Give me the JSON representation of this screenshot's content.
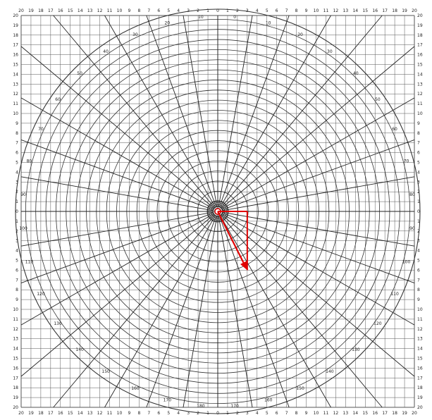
{
  "grid": {
    "top_labels": [
      "20",
      "19",
      "18",
      "17",
      "16",
      "15",
      "14",
      "13",
      "12",
      "11",
      "10",
      "9",
      "8",
      "7",
      "6",
      "5",
      "4",
      "3",
      "2",
      "1",
      "0",
      "1",
      "2",
      "3",
      "4",
      "5",
      "6",
      "7",
      "8",
      "9",
      "10",
      "11",
      "12",
      "13",
      "14",
      "15",
      "16",
      "17",
      "18",
      "19",
      "20"
    ],
    "bottom_labels": [
      "20",
      "19",
      "18",
      "17",
      "16",
      "15",
      "14",
      "13",
      "12",
      "11",
      "10",
      "9",
      "8",
      "7",
      "6",
      "5",
      "4",
      "3",
      "2",
      "1",
      "0",
      "1",
      "2",
      "3",
      "4",
      "5",
      "6",
      "7",
      "8",
      "9",
      "10",
      "11",
      "12",
      "13",
      "14",
      "15",
      "16",
      "17",
      "18",
      "19",
      "20"
    ],
    "side_labels": [
      "20",
      "19",
      "18",
      "17",
      "16",
      "15",
      "14",
      "13",
      "12",
      "11",
      "10",
      "9",
      "8",
      "7",
      "6",
      "5",
      "4",
      "3",
      "2",
      "1",
      "0",
      "1",
      "2",
      "3",
      "4",
      "5",
      "6",
      "7",
      "8",
      "9",
      "10",
      "11",
      "12",
      "13",
      "14",
      "15",
      "16",
      "17",
      "18",
      "19",
      "20"
    ]
  },
  "polar": {
    "ring_count": 20,
    "spoke_count": 36,
    "angle_labels": [
      "0",
      "10",
      "20",
      "30",
      "40",
      "50",
      "60",
      "70",
      "80",
      "90",
      "100",
      "110",
      "120",
      "130",
      "140",
      "150",
      "160",
      "170",
      "180",
      "170",
      "160",
      "150",
      "140",
      "130",
      "120",
      "110",
      "100",
      "90",
      "80",
      "70",
      "60",
      "50",
      "40",
      "30",
      "20",
      "10"
    ]
  },
  "vector": {
    "color": "#e00000",
    "dx": 3,
    "dy": 6
  }
}
